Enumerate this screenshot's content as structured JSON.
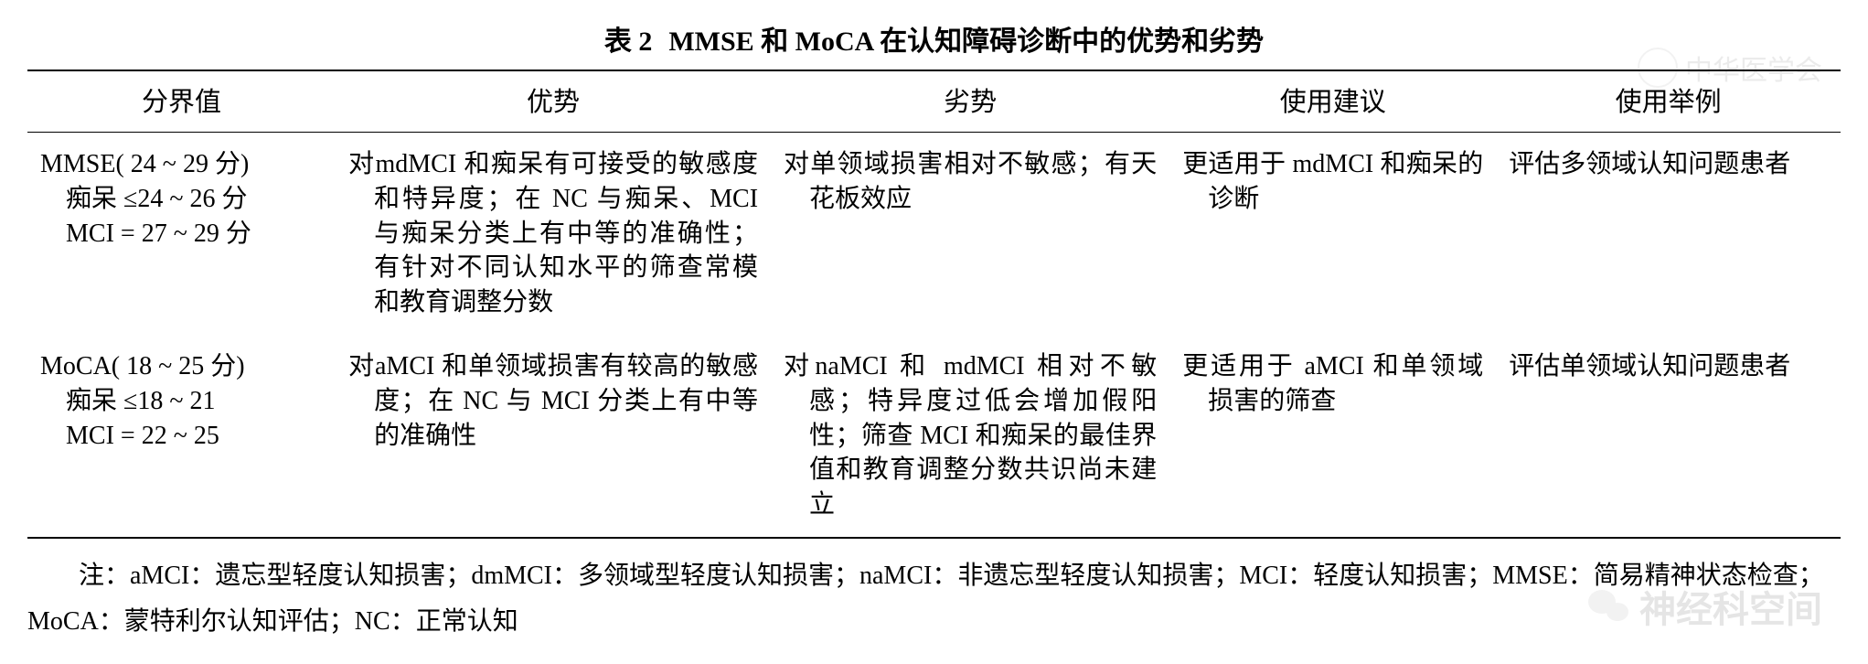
{
  "table": {
    "title_number": "表 2",
    "title_text": "MMSE 和 MoCA 在认知障碍诊断中的优势和劣势",
    "headers": {
      "cutoff": "分界值",
      "advantage": "优势",
      "disadvantage": "劣势",
      "suggestion": "使用建议",
      "example": "使用举例"
    },
    "rows": [
      {
        "cutoff_main": "MMSE( 24 ~ 29 分)",
        "cutoff_line1": "痴呆 ≤24 ~ 26 分",
        "cutoff_line2": "MCI = 27 ~ 29 分",
        "advantage": "对mdMCI 和痴呆有可接受的敏感度和特异度；在 NC 与痴呆、MCI 与痴呆分类上有中等的准确性；有针对不同认知水平的筛查常模和教育调整分数",
        "disadvantage": "对单领域损害相对不敏感；有天花板效应",
        "suggestion": "更适用于 mdMCI 和痴呆的诊断",
        "example": "评估多领域认知问题患者"
      },
      {
        "cutoff_main": "MoCA( 18 ~ 25 分)",
        "cutoff_line1": "痴呆 ≤18 ~ 21",
        "cutoff_line2": "MCI = 22 ~ 25",
        "advantage": "对aMCI 和单领域损害有较高的敏感度；在 NC 与 MCI 分类上有中等的准确性",
        "disadvantage": "对naMCI 和 mdMCI 相对不敏感；特异度过低会增加假阳性；筛查 MCI 和痴呆的最佳界值和教育调整分数共识尚未建立",
        "suggestion": "更适用于 aMCI 和单领域损害的筛查",
        "example": "评估单领域认知问题患者"
      }
    ]
  },
  "footnote": "注：aMCI：遗忘型轻度认知损害；dmMCI：多领域型轻度认知损害；naMCI：非遗忘型轻度认知损害；MCI：轻度认知损害；MMSE：简易精神状态检查；MoCA：蒙特利尔认知评估；NC：正常认知",
  "watermarks": {
    "top_text": "中华医学会",
    "bottom_text": " 神经科空间"
  },
  "styling": {
    "background_color": "#ffffff",
    "text_color": "#000000",
    "border_color": "#000000",
    "font_family": "SimSun, 宋体, serif",
    "title_fontsize": 30,
    "header_fontsize": 29,
    "cell_fontsize": 28,
    "footnote_fontsize": 28,
    "watermark_opacity": 0.12
  }
}
